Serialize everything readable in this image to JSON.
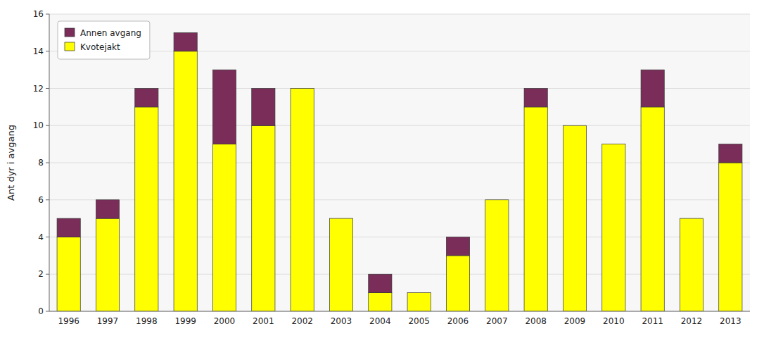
{
  "chart_data": {
    "type": "bar",
    "stacked": true,
    "y_label": "Ant dyr i avgang",
    "categories": [
      "1996",
      "1997",
      "1998",
      "1999",
      "2000",
      "2001",
      "2002",
      "2003",
      "2004",
      "2005",
      "2006",
      "2007",
      "2008",
      "2009",
      "2010",
      "2011",
      "2012",
      "2013"
    ],
    "series": [
      {
        "name": "Kvotejakt",
        "color": "#FFFF00",
        "values": [
          4,
          5,
          11,
          14,
          9,
          10,
          12,
          5,
          1,
          1,
          3,
          6,
          11,
          10,
          9,
          11,
          5,
          8
        ]
      },
      {
        "name": "Annen avgang",
        "color": "#7B2D5A",
        "values": [
          1,
          1,
          1,
          1,
          4,
          2,
          0,
          0,
          1,
          0,
          1,
          0,
          1,
          0,
          0,
          2,
          0,
          1
        ]
      }
    ],
    "ylim": [
      0,
      16
    ],
    "yticks": [
      0,
      2,
      4,
      6,
      8,
      10,
      12,
      14,
      16
    ],
    "grid": true,
    "legend": "upper left"
  }
}
